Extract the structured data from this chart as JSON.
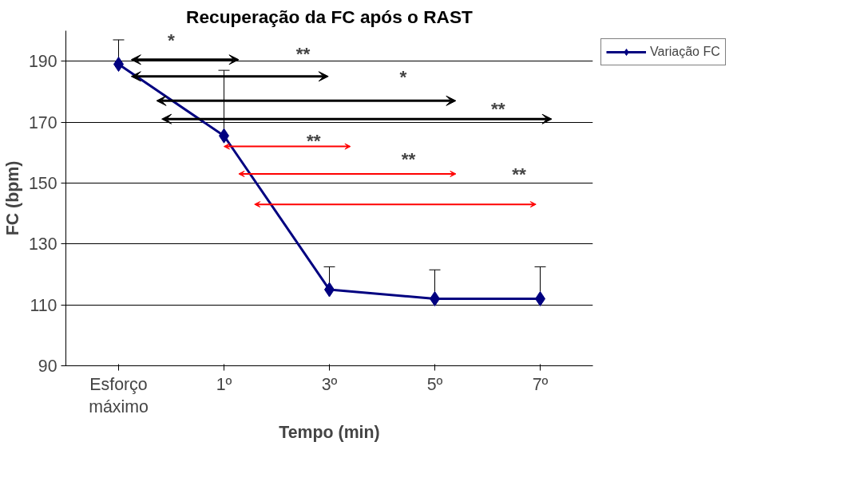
{
  "chart_data": {
    "type": "line",
    "title": "Recuperação da FC após o RAST",
    "xlabel": "Tempo (min)",
    "ylabel": "FC (bpm)",
    "categories": [
      "Esforço máximo",
      "1º",
      "3º",
      "5º",
      "7º"
    ],
    "series": [
      {
        "name": "Variação FC",
        "color": "#000080",
        "values": [
          189,
          165.5,
          115,
          112,
          112
        ],
        "errors": [
          [
            189,
            197
          ],
          [
            165.5,
            187
          ],
          [
            115,
            122.5
          ],
          [
            112,
            121.5
          ],
          [
            112,
            122.5
          ]
        ]
      }
    ],
    "ylim": [
      90,
      200
    ],
    "yticks": [
      90,
      110,
      130,
      150,
      170,
      190
    ],
    "grid": "y",
    "legend": "top right",
    "marker": "diamond",
    "line_style": "solid",
    "annotations": [
      "*",
      "**",
      "*",
      "**",
      "**",
      "**",
      "**"
    ]
  }
}
